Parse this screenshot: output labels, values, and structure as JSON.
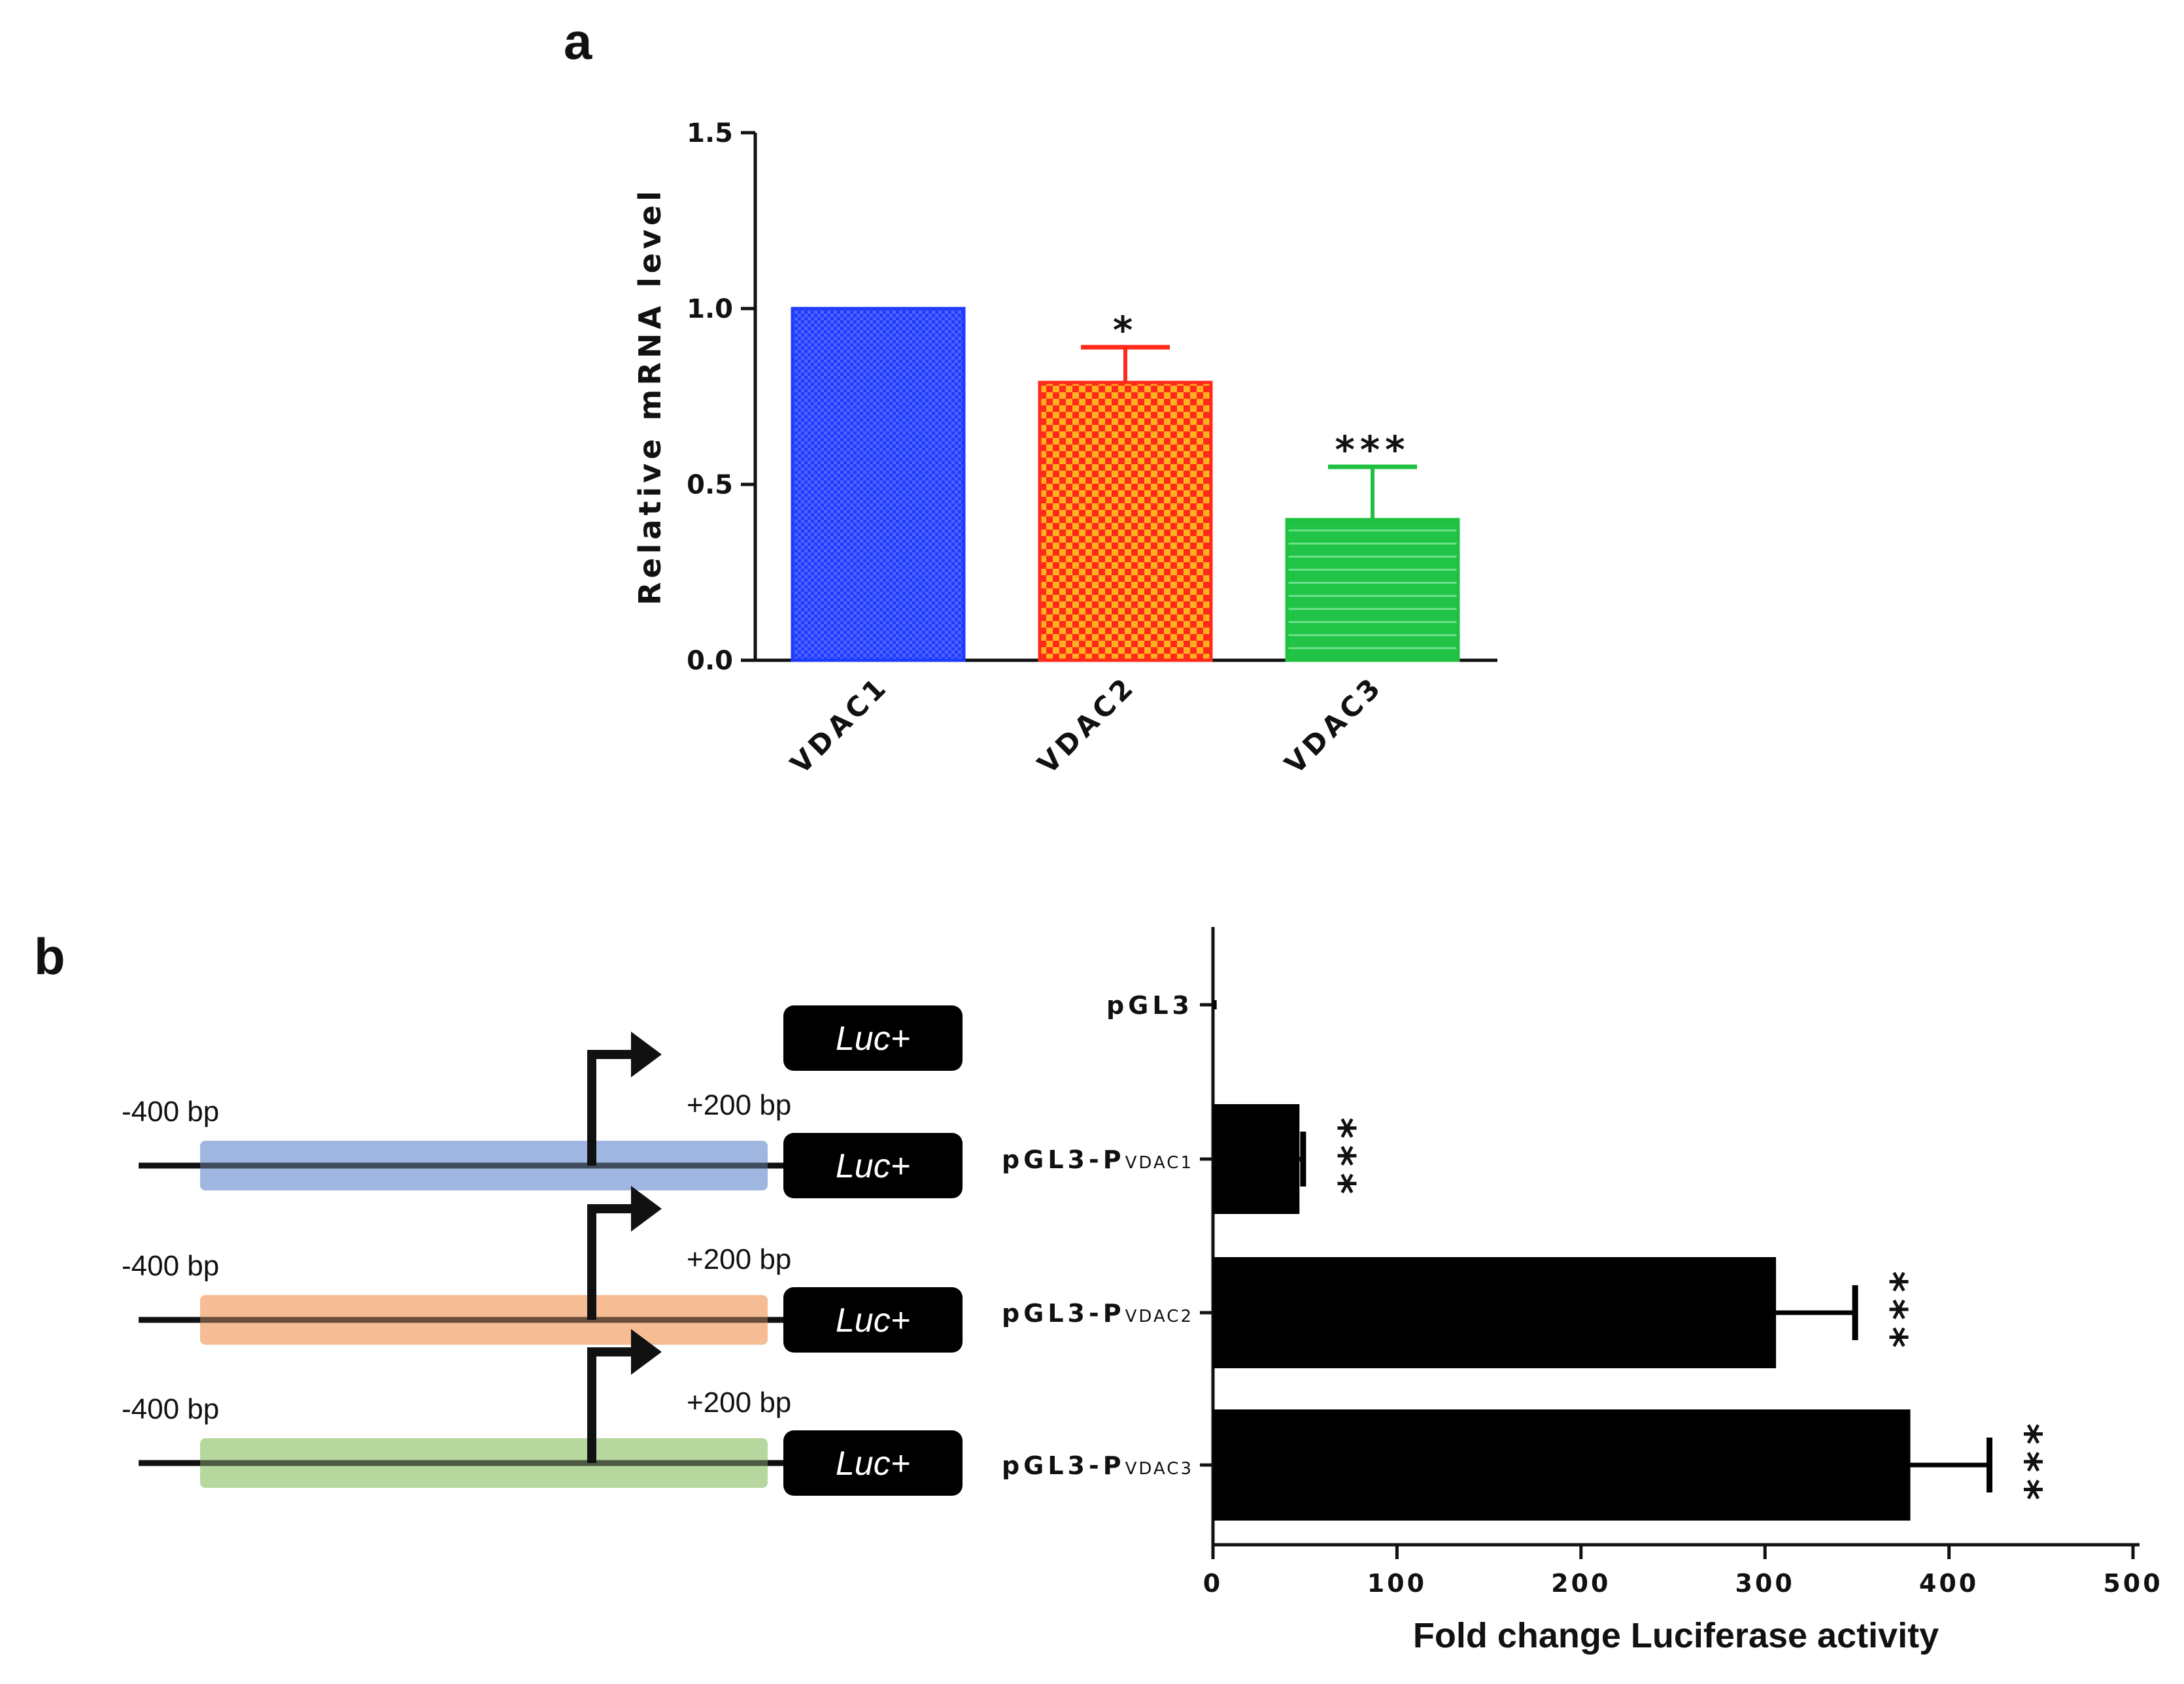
{
  "chart_data": [
    {
      "panel": "a",
      "type": "bar",
      "title": "",
      "xlabel": "",
      "ylabel": "Relative mRNA level",
      "ylim": [
        0,
        1.5
      ],
      "yticks": [
        "0.0",
        "0.5",
        "1.0",
        "1.5"
      ],
      "categories": [
        "VDAC1",
        "VDAC2",
        "VDAC3"
      ],
      "values": [
        1.0,
        0.79,
        0.4
      ],
      "errors": [
        0,
        0.1,
        0.15
      ],
      "significance": [
        "",
        "*",
        "***"
      ],
      "colors": [
        "#1f3bff",
        "#ff2a1a",
        "#20c040"
      ],
      "patterns": [
        "checker-blue",
        "checker-orange",
        "stripes-green"
      ]
    },
    {
      "panel": "b",
      "type": "bar",
      "orientation": "horizontal",
      "title": "",
      "xlabel": "Fold change Luciferase activity",
      "ylabel": "",
      "xlim": [
        0,
        500
      ],
      "xticks": [
        "0",
        "100",
        "200",
        "300",
        "400",
        "500"
      ],
      "categories": [
        {
          "base": "pGL3",
          "sub": ""
        },
        {
          "base": "pGL3-P",
          "sub": "VDAC1"
        },
        {
          "base": "pGL3-P",
          "sub": "VDAC2"
        },
        {
          "base": "pGL3-P",
          "sub": "VDAC3"
        }
      ],
      "values": [
        2,
        47,
        306,
        379
      ],
      "errors": [
        1,
        2,
        43,
        43
      ],
      "significance": [
        "",
        "***",
        "***",
        "***"
      ],
      "color": "#000000"
    }
  ],
  "panel_labels": [
    "a",
    "b"
  ],
  "constructs": [
    {
      "left_label": "",
      "right_label": "",
      "luc_label": "Luc+",
      "color": ""
    },
    {
      "left_label": "-400 bp",
      "right_label": "+200 bp",
      "luc_label": "Luc+",
      "color": "#8eaadb"
    },
    {
      "left_label": "-400 bp",
      "right_label": "+200 bp",
      "luc_label": "Luc+",
      "color": "#f4b183"
    },
    {
      "left_label": "-400 bp",
      "right_label": "+200 bp",
      "luc_label": "Luc+",
      "color": "#a9d18e"
    }
  ]
}
